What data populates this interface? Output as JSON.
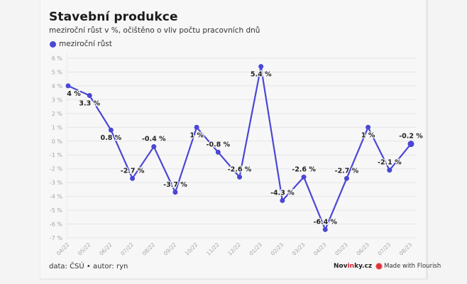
{
  "header": {
    "title": "Stavební produkce",
    "subtitle": "meziroční růst v %, očištěno o vliv počtu pracovních dnů"
  },
  "legend": {
    "label": "meziroční růst",
    "color": "#4a47d6"
  },
  "footer": {
    "source": "data: ČSÚ • autor: ryn",
    "brand_prefix": "Nov",
    "brand_highlight": "in",
    "brand_suffix": "ky.cz",
    "made_with": "Made with Flourish"
  },
  "chart_data": {
    "type": "line",
    "title": "Stavební produkce",
    "subtitle": "meziroční růst v %, očištěno o vliv počtu pracovních dnů",
    "xlabel": "",
    "ylabel": "",
    "categories": [
      "04/22",
      "05/22",
      "06/22",
      "07/22",
      "08/22",
      "09/22",
      "10/22",
      "11/22",
      "12/22",
      "01/23",
      "02/23",
      "03/23",
      "04/23",
      "05/23",
      "06/23",
      "07/23",
      "08/23"
    ],
    "series": [
      {
        "name": "meziroční růst",
        "color": "#4a47d6",
        "values": [
          4,
          3.3,
          0.8,
          -2.7,
          -0.4,
          -3.7,
          1,
          -0.8,
          -2.6,
          5.4,
          -4.3,
          -2.6,
          -6.4,
          -2.7,
          1,
          -2.1,
          -0.2
        ],
        "labels": [
          "4 %",
          "3.3 %",
          "0.8 %",
          "-2.7 %",
          "-0.4 %",
          "-3.7 %",
          "1 %",
          "-0.8 %",
          "-2.6 %",
          "5.4 %",
          "-4.3 %",
          "-2.6 %",
          "-6.4 %",
          "-2.7 %",
          "1 %",
          "-2.1 %",
          "-0.2 %"
        ],
        "label_positions": [
          "below",
          "below",
          "below",
          "above",
          "above",
          "above",
          "below",
          "above",
          "above",
          "below",
          "above",
          "above",
          "above",
          "above",
          "below",
          "above",
          "above"
        ]
      }
    ],
    "ylim": [
      -7,
      6
    ],
    "yticks": [
      6,
      5,
      4,
      3,
      2,
      1,
      0,
      -1,
      -2,
      -3,
      -4,
      -5,
      -6,
      -7
    ],
    "ytick_labels": [
      "6 %",
      "5 %",
      "4 %",
      "3 %",
      "2 %",
      "1 %",
      "0 %",
      "-1 %",
      "-2 %",
      "-3 %",
      "-4 %",
      "-5 %",
      "-6 %",
      "-7 %"
    ],
    "grid": true,
    "legend_position": "top-left"
  }
}
